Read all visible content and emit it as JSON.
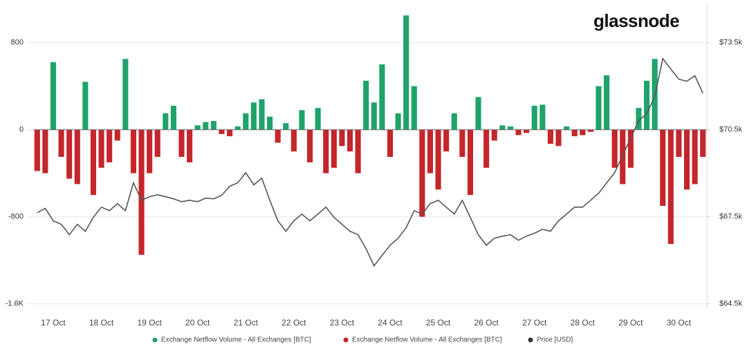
{
  "chart_data": {
    "type": "bar",
    "watermark": "glassnode",
    "categories": [
      null,
      null,
      "17 Oct",
      null,
      null,
      null,
      null,
      null,
      "18 Oct",
      null,
      null,
      null,
      null,
      null,
      "19 Oct",
      null,
      null,
      null,
      null,
      null,
      "20 Oct",
      null,
      null,
      null,
      null,
      null,
      "21 Oct",
      null,
      null,
      null,
      null,
      null,
      "22 Oct",
      null,
      null,
      null,
      null,
      null,
      "23 Oct",
      null,
      null,
      null,
      null,
      null,
      "24 Oct",
      null,
      null,
      null,
      null,
      null,
      "25 Oct",
      null,
      null,
      null,
      null,
      null,
      "26 Oct",
      null,
      null,
      null,
      null,
      null,
      "27 Oct",
      null,
      null,
      null,
      null,
      null,
      "28 Oct",
      null,
      null,
      null,
      null,
      null,
      "29 Oct",
      null,
      null,
      null,
      null,
      null,
      "30 Oct",
      null,
      null,
      null
    ],
    "series": [
      {
        "name": "Exchange Netflow Volume - All Exchanges [BTC]",
        "color": "#1fa36a",
        "values": [
          null,
          null,
          620,
          null,
          null,
          null,
          440,
          null,
          null,
          null,
          null,
          650,
          null,
          null,
          null,
          null,
          150,
          220,
          null,
          null,
          40,
          70,
          80,
          null,
          null,
          30,
          150,
          250,
          280,
          120,
          null,
          60,
          null,
          180,
          null,
          200,
          null,
          null,
          null,
          null,
          null,
          450,
          250,
          600,
          null,
          150,
          1050,
          400,
          null,
          null,
          null,
          null,
          150,
          null,
          null,
          300,
          null,
          null,
          40,
          30,
          null,
          null,
          220,
          230,
          null,
          null,
          30,
          null,
          null,
          null,
          400,
          500,
          null,
          null,
          null,
          200,
          450,
          650,
          null,
          null,
          null,
          null,
          null,
          null
        ]
      },
      {
        "name": "Exchange Netflow Volume - All Exchanges [BTC]",
        "color": "#c4262b",
        "values": [
          -380,
          -400,
          null,
          -250,
          -450,
          -500,
          null,
          -600,
          -350,
          -300,
          -100,
          null,
          -400,
          -1150,
          -400,
          -250,
          null,
          null,
          -250,
          -300,
          null,
          null,
          null,
          -40,
          -60,
          null,
          null,
          null,
          null,
          null,
          -120,
          null,
          -200,
          null,
          -300,
          null,
          -400,
          -350,
          -150,
          -200,
          -400,
          null,
          null,
          null,
          -250,
          null,
          null,
          null,
          -800,
          -400,
          -550,
          -200,
          null,
          -250,
          -600,
          null,
          -350,
          -100,
          null,
          null,
          -50,
          -30,
          null,
          null,
          -130,
          -150,
          null,
          -60,
          -50,
          -20,
          null,
          null,
          -350,
          -500,
          -350,
          null,
          null,
          null,
          -700,
          -1050,
          -250,
          -550,
          -500,
          -250
        ]
      },
      {
        "name": "Price [USD]",
        "color": "#555555",
        "type": "line",
        "axis": "y2",
        "values": [
          67640,
          67790,
          67360,
          67240,
          66880,
          67240,
          67000,
          67480,
          67830,
          67710,
          67950,
          67710,
          68670,
          68070,
          68190,
          68260,
          68190,
          68120,
          68020,
          68070,
          68020,
          68140,
          68120,
          68240,
          68550,
          68670,
          69020,
          68600,
          68830,
          68070,
          67360,
          67000,
          67360,
          67590,
          67360,
          67590,
          67830,
          67480,
          67240,
          67000,
          66880,
          66400,
          65810,
          66170,
          66520,
          66760,
          67120,
          67710,
          67590,
          67950,
          68070,
          67830,
          67590,
          68070,
          67480,
          66880,
          66520,
          66760,
          66830,
          66880,
          66690,
          66830,
          66930,
          67070,
          67000,
          67360,
          67590,
          67830,
          67830,
          68070,
          68310,
          68670,
          69020,
          69620,
          70210,
          70810,
          71050,
          71640,
          72950,
          72590,
          72240,
          72170,
          72360,
          71760
        ]
      }
    ],
    "ylim": [
      -1640,
      1160
    ],
    "yticks": [
      {
        "value": -1600,
        "label": "-1.6K"
      },
      -800,
      0,
      800
    ],
    "y2lim": [
      64350,
      74850
    ],
    "y2ticks": [
      {
        "value": 64500,
        "label": "$64.5k"
      },
      {
        "value": 67500,
        "label": "$67.5k"
      },
      {
        "value": 70500,
        "label": "$70.5k"
      },
      {
        "value": 73500,
        "label": "$73.5k"
      }
    ],
    "grid": true
  }
}
